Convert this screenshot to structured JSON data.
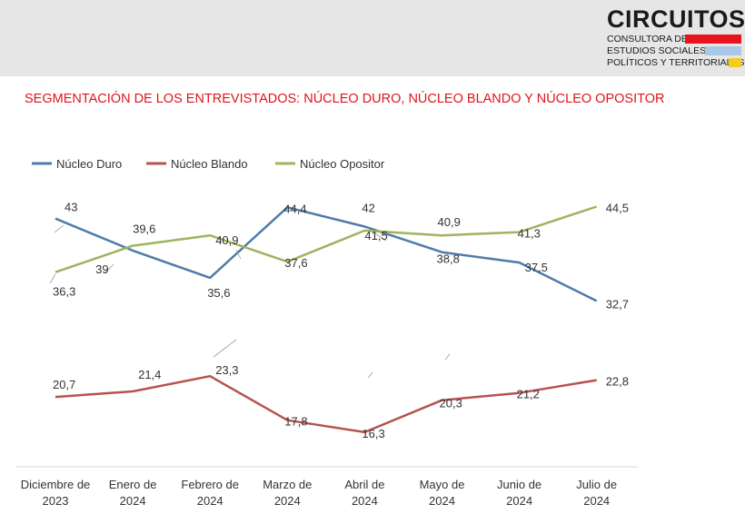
{
  "brand": {
    "name": "CIRCUITOS",
    "line1": "CONSULTORA DE",
    "line2": "ESTUDIOS SOCIALES,",
    "line3": "POLÍTICOS Y TERRITORIALES",
    "colors": [
      "#e8141c",
      "#a9c8e8",
      "#f2cd1f"
    ]
  },
  "chart_data": {
    "type": "line",
    "title": "SEGMENTACIÓN DE LOS ENTREVISTADOS: NÚCLEO DURO, NÚCLEO BLANDO Y NÚCLEO OPOSITOR",
    "categories": [
      [
        "Diciembre de",
        "2023"
      ],
      [
        "Enero de",
        "2024"
      ],
      [
        "Febrero de",
        "2024"
      ],
      [
        "Marzo de",
        "2024"
      ],
      [
        "Abril de",
        "2024"
      ],
      [
        "Mayo de",
        "2024"
      ],
      [
        "Junio de",
        "2024"
      ],
      [
        "Julio de",
        "2024"
      ]
    ],
    "series": [
      {
        "name": "Núcleo Duro",
        "color": "#4f7ca8",
        "values": [
          43,
          39,
          35.6,
          44.4,
          42,
          38.8,
          37.5,
          32.7
        ],
        "labels": [
          "43",
          "39",
          "35,6",
          "44,4",
          "42",
          "38,8",
          "37,5",
          "32,7"
        ]
      },
      {
        "name": "Núcleo Blando",
        "color": "#b6534f",
        "values": [
          20.7,
          21.4,
          23.3,
          17.8,
          16.3,
          20.3,
          21.2,
          22.8
        ],
        "labels": [
          "20,7",
          "21,4",
          "23,3",
          "17,8",
          "16,3",
          "20,3",
          "21,2",
          "22,8"
        ]
      },
      {
        "name": "Núcleo Opositor",
        "color": "#9cb55e",
        "values": [
          36.3,
          39.6,
          40.9,
          37.6,
          41.5,
          40.9,
          41.3,
          44.5
        ],
        "labels": [
          "36,3",
          "39,6",
          "40,9",
          "37,6",
          "41,5",
          "40,9",
          "41,3",
          "44,5"
        ]
      }
    ],
    "legend_position": "top-left",
    "grid": false
  }
}
